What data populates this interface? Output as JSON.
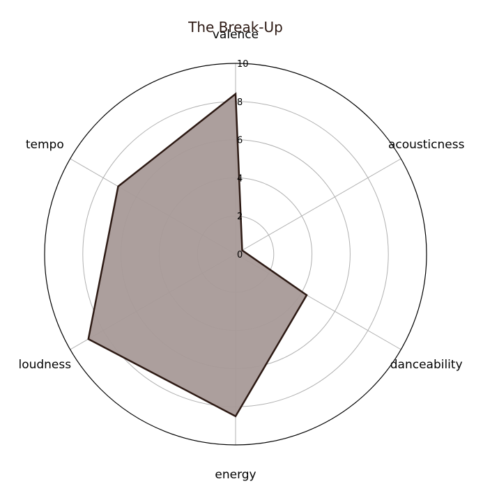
{
  "chart_data": {
    "type": "radar",
    "title": "The Break-Up",
    "axes": [
      "valence",
      "acousticness",
      "danceability",
      "energy",
      "loudness",
      "tempo"
    ],
    "series": [
      {
        "values": [
          8.4,
          0.4,
          4.3,
          8.5,
          8.9,
          7.1
        ]
      }
    ],
    "r_range": [
      0,
      10
    ],
    "r_ticks": [
      "0",
      "2",
      "4",
      "6",
      "8",
      "10"
    ],
    "grid": true,
    "colors": {
      "line": "#2d1a14",
      "fill": "#a89a98",
      "title": "#2d1a14",
      "grid": "#b0b0b0",
      "frame": "#000000"
    }
  }
}
